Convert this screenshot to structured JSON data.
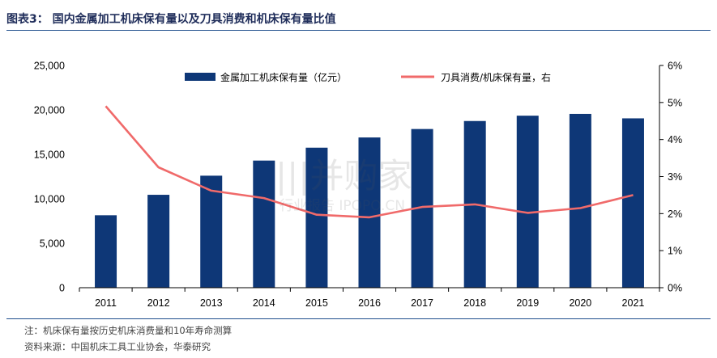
{
  "header": {
    "title": "图表3： 国内金属加工机床保有量以及刀具消费和机床保有量比值"
  },
  "footer": {
    "note": "注：机床保有量按历史机床消费量和10年寿命测算",
    "source": "资料来源：中国机床工具工业协会，华泰研究"
  },
  "colors": {
    "bar": "#0e3777",
    "line": "#f06a6a",
    "rule": "#1f4e8c"
  },
  "chart_data": {
    "type": "bar",
    "categories": [
      "2011",
      "2012",
      "2013",
      "2014",
      "2015",
      "2016",
      "2017",
      "2018",
      "2019",
      "2020",
      "2021"
    ],
    "series": [
      {
        "name": "金属加工机床保有量（亿元）",
        "type": "bar",
        "axis": "left",
        "values": [
          8150,
          10450,
          12600,
          14300,
          15750,
          16900,
          17850,
          18750,
          19350,
          19550,
          19050
        ]
      },
      {
        "name": "刀具消费/机床保有量，右",
        "type": "line",
        "axis": "right",
        "values": [
          0.049,
          0.0325,
          0.0262,
          0.0242,
          0.0197,
          0.019,
          0.0218,
          0.0225,
          0.0202,
          0.0215,
          0.025
        ]
      }
    ],
    "y_left": {
      "min": 0,
      "max": 25000,
      "ticks": [
        "0",
        "5,000",
        "10,000",
        "15,000",
        "20,000",
        "25,000"
      ]
    },
    "y_right": {
      "min": 0,
      "max": 0.06,
      "ticks": [
        "0%",
        "1%",
        "2%",
        "3%",
        "4%",
        "5%",
        "6%"
      ]
    },
    "legend_position": "top",
    "grid": false
  }
}
